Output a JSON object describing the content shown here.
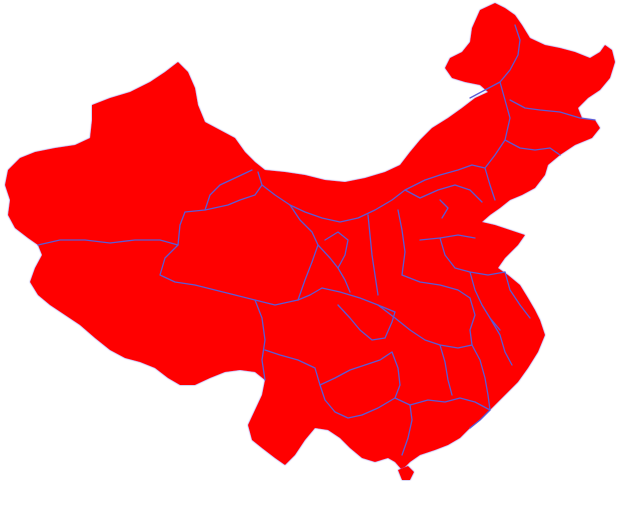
{
  "map": {
    "fill_color": "#ff0000",
    "border_color": "#5b5bd6",
    "background_color": "#ffffff"
  }
}
